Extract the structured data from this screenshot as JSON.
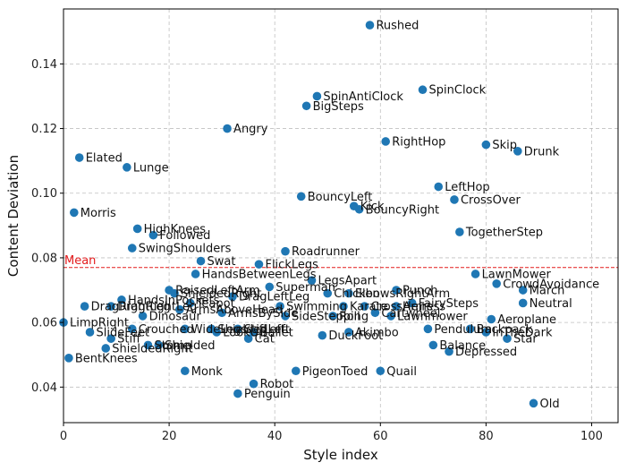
{
  "chart_data": {
    "type": "scatter",
    "xlabel": "Style index",
    "ylabel": "Content Deviation",
    "xlim": [
      0,
      105
    ],
    "ylim": [
      0.029,
      0.157
    ],
    "xticks": [
      0,
      20,
      40,
      60,
      80,
      100
    ],
    "yticks": [
      0.04,
      0.06,
      0.08,
      0.1,
      0.12,
      0.14
    ],
    "grid": true,
    "marker_color": "#1f77b4",
    "mean": {
      "label": "Mean",
      "value": 0.077,
      "color": "#e31a1c"
    },
    "points": [
      {
        "name": "Rushed",
        "x": 58,
        "y": 0.152
      },
      {
        "name": "SpinClock",
        "x": 68,
        "y": 0.132
      },
      {
        "name": "SpinAntiClock",
        "x": 48,
        "y": 0.13
      },
      {
        "name": "BigSteps",
        "x": 46,
        "y": 0.127
      },
      {
        "name": "Angry",
        "x": 31,
        "y": 0.12
      },
      {
        "name": "RightHop",
        "x": 61,
        "y": 0.116
      },
      {
        "name": "Skip",
        "x": 80,
        "y": 0.115
      },
      {
        "name": "Drunk",
        "x": 86,
        "y": 0.113
      },
      {
        "name": "Elated",
        "x": 3,
        "y": 0.111
      },
      {
        "name": "Lunge",
        "x": 12,
        "y": 0.108
      },
      {
        "name": "LeftHop",
        "x": 71,
        "y": 0.102
      },
      {
        "name": "CrossOver",
        "x": 74,
        "y": 0.098
      },
      {
        "name": "BouncyLeft",
        "x": 45,
        "y": 0.099
      },
      {
        "name": "Kick",
        "x": 55,
        "y": 0.096
      },
      {
        "name": "BouncyRight",
        "x": 56,
        "y": 0.095
      },
      {
        "name": "Morris",
        "x": 2,
        "y": 0.094
      },
      {
        "name": "HighKnees",
        "x": 14,
        "y": 0.089
      },
      {
        "name": "Followed",
        "x": 17,
        "y": 0.087
      },
      {
        "name": "TogetherStep",
        "x": 75,
        "y": 0.088
      },
      {
        "name": "SwingShoulders",
        "x": 13,
        "y": 0.083
      },
      {
        "name": "Roadrunner",
        "x": 42,
        "y": 0.082
      },
      {
        "name": "Swat",
        "x": 26,
        "y": 0.079
      },
      {
        "name": "FlickLegs",
        "x": 37,
        "y": 0.078
      },
      {
        "name": "HandsBetweenLegs",
        "x": 25,
        "y": 0.075
      },
      {
        "name": "LegsApart",
        "x": 47,
        "y": 0.073
      },
      {
        "name": "LawnMower",
        "x": 78,
        "y": 0.075
      },
      {
        "name": "CrowdAvoidance",
        "x": 82,
        "y": 0.072
      },
      {
        "name": "March",
        "x": 87,
        "y": 0.07
      },
      {
        "name": "Superman",
        "x": 39,
        "y": 0.071
      },
      {
        "name": "Punch",
        "x": 63,
        "y": 0.07
      },
      {
        "name": "RaisedLeftArm",
        "x": 20,
        "y": 0.07
      },
      {
        "name": "ShieldedRight",
        "x": 21,
        "y": 0.069
      },
      {
        "name": "DragLeftLeg",
        "x": 32,
        "y": 0.068
      },
      {
        "name": "HandsInPockets",
        "x": 11,
        "y": 0.067
      },
      {
        "name": "Teapot",
        "x": 24,
        "y": 0.066
      },
      {
        "name": "Neutral",
        "x": 87,
        "y": 0.066
      },
      {
        "name": "Chicken",
        "x": 50,
        "y": 0.069
      },
      {
        "name": "ElbowsRightArm",
        "x": 54,
        "y": 0.069
      },
      {
        "name": "FairySteps",
        "x": 66,
        "y": 0.066
      },
      {
        "name": "DragRightLeg",
        "x": 4,
        "y": 0.065
      },
      {
        "name": "DragRightLeg",
        "x": 9,
        "y": 0.065
      },
      {
        "name": "ArmsAboveHead",
        "x": 22,
        "y": 0.064
      },
      {
        "name": "Swimming",
        "x": 41,
        "y": 0.065
      },
      {
        "name": "Karate",
        "x": 53,
        "y": 0.065
      },
      {
        "name": "CrossArms",
        "x": 57,
        "y": 0.065
      },
      {
        "name": "Heiress",
        "x": 63,
        "y": 0.065
      },
      {
        "name": "Dinosaur",
        "x": 15,
        "y": 0.062
      },
      {
        "name": "ArmsBySide",
        "x": 30,
        "y": 0.063
      },
      {
        "name": "SideStepping",
        "x": 42,
        "y": 0.062
      },
      {
        "name": "Roll",
        "x": 51,
        "y": 0.062
      },
      {
        "name": "Cartwheel",
        "x": 59,
        "y": 0.063
      },
      {
        "name": "Lawnmower",
        "x": 62,
        "y": 0.062
      },
      {
        "name": "Aeroplane",
        "x": 81,
        "y": 0.061
      },
      {
        "name": "LimpRight",
        "x": 0,
        "y": 0.06
      },
      {
        "name": "Crouched",
        "x": 13,
        "y": 0.058
      },
      {
        "name": "WideLegs",
        "x": 23,
        "y": 0.058
      },
      {
        "name": "ShieldedLeft",
        "x": 28,
        "y": 0.058
      },
      {
        "name": "StifLeft",
        "x": 33,
        "y": 0.058
      },
      {
        "name": "Pendulum",
        "x": 69,
        "y": 0.058
      },
      {
        "name": "Backpack",
        "x": 77,
        "y": 0.058
      },
      {
        "name": "InTheDark",
        "x": 80,
        "y": 0.057
      },
      {
        "name": "SlideFeet",
        "x": 5,
        "y": 0.057
      },
      {
        "name": "LookUp",
        "x": 29,
        "y": 0.057
      },
      {
        "name": "Ballet",
        "x": 36,
        "y": 0.057
      },
      {
        "name": "DuckFoot",
        "x": 49,
        "y": 0.056
      },
      {
        "name": "Akimbo",
        "x": 54,
        "y": 0.057
      },
      {
        "name": "Stiff",
        "x": 9,
        "y": 0.055
      },
      {
        "name": "Cat",
        "x": 35,
        "y": 0.055
      },
      {
        "name": "Star",
        "x": 84,
        "y": 0.055
      },
      {
        "name": "Stomp",
        "x": 16,
        "y": 0.053
      },
      {
        "name": "Shielded",
        "x": 18,
        "y": 0.053
      },
      {
        "name": "ShieldedRight",
        "x": 8,
        "y": 0.052
      },
      {
        "name": "Balance",
        "x": 70,
        "y": 0.053
      },
      {
        "name": "Depressed",
        "x": 73,
        "y": 0.051
      },
      {
        "name": "BentKnees",
        "x": 1,
        "y": 0.049
      },
      {
        "name": "Monk",
        "x": 23,
        "y": 0.045
      },
      {
        "name": "PigeonToed",
        "x": 44,
        "y": 0.045
      },
      {
        "name": "Quail",
        "x": 60,
        "y": 0.045
      },
      {
        "name": "Robot",
        "x": 36,
        "y": 0.041
      },
      {
        "name": "Penguin",
        "x": 33,
        "y": 0.038
      },
      {
        "name": "Old",
        "x": 89,
        "y": 0.035
      }
    ]
  }
}
